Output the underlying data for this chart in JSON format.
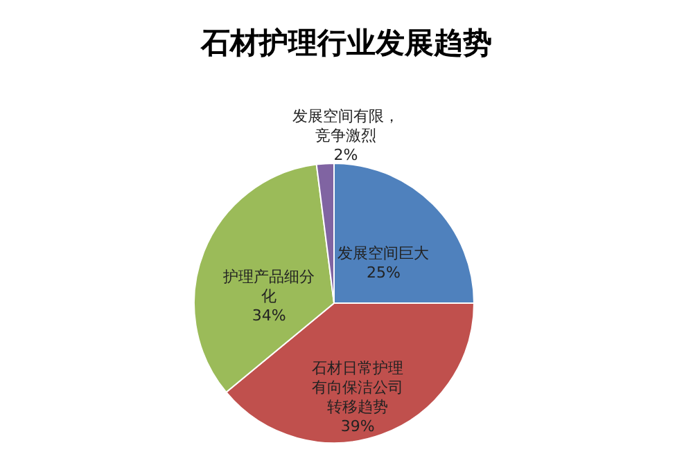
{
  "chart_data": {
    "type": "pie",
    "title": "石材护理行业发展趋势",
    "categories": [
      "发展空间巨大",
      "石材日常护理有向保洁公司转移趋势",
      "护理产品细分化",
      "发展空间有限，竞争激烈"
    ],
    "values": [
      25,
      39,
      34,
      2
    ],
    "value_labels": [
      "25%",
      "39%",
      "34%",
      "2%"
    ],
    "colors": [
      "#4f81bd",
      "#c0504d",
      "#9bbb59",
      "#8064a2"
    ]
  }
}
